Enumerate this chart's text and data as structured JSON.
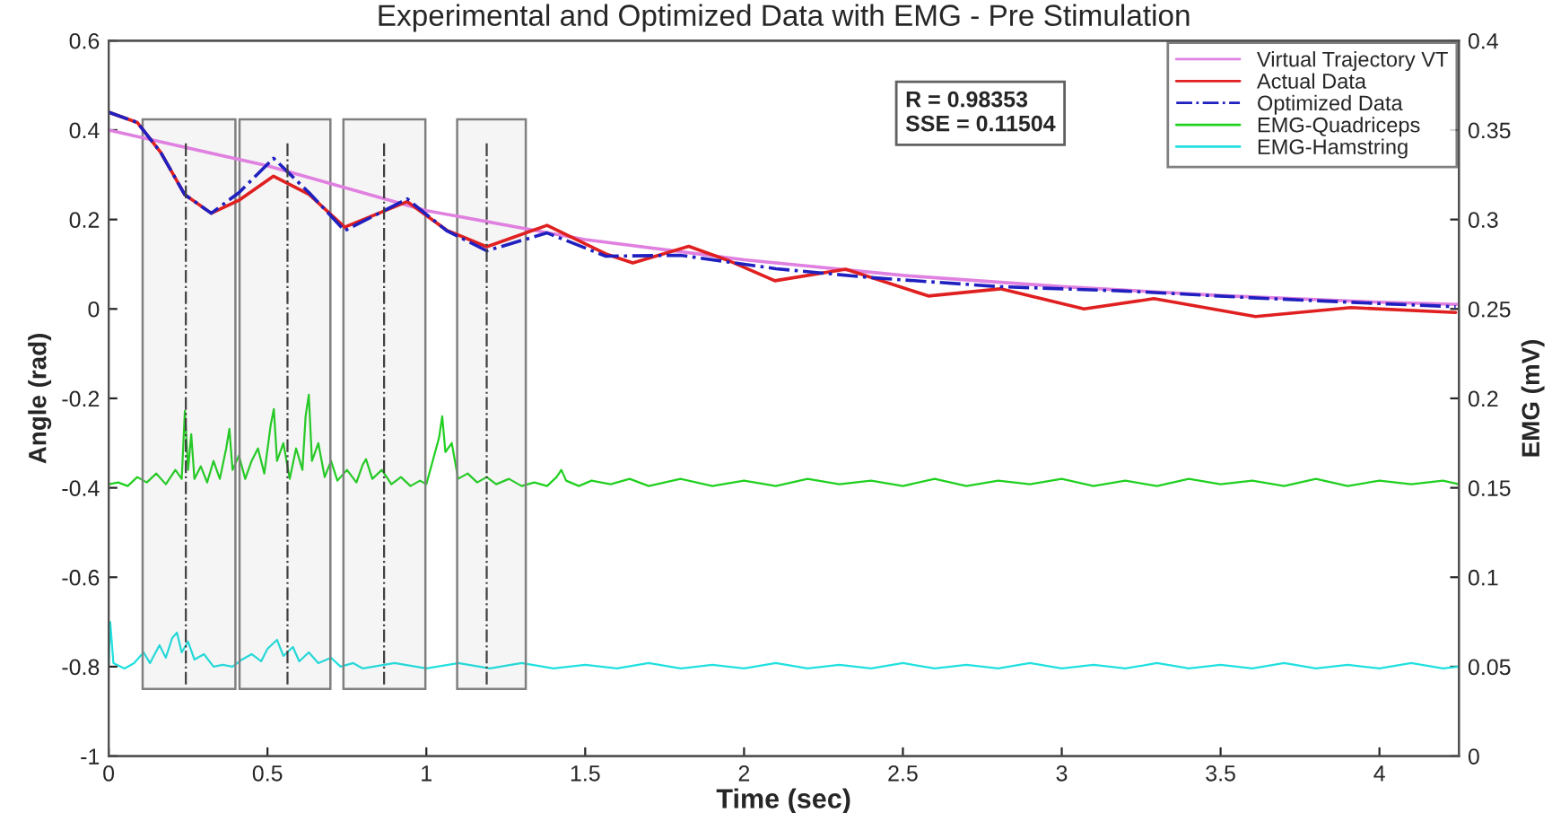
{
  "chart_data": {
    "type": "line",
    "title": "Experimental and Optimized Data with EMG - Pre Stimulation",
    "xlabel": "Time (sec)",
    "ylabel": "Angle (rad)",
    "y2label": "EMG (mV)",
    "xlim": [
      0,
      4.25
    ],
    "xticks": [
      0,
      0.5,
      1,
      1.5,
      2,
      2.5,
      3,
      3.5,
      4
    ],
    "ylim": [
      -1,
      0.6
    ],
    "yticks": [
      -1,
      -0.8,
      -0.6,
      -0.4,
      -0.2,
      0,
      0.2,
      0.4,
      0.6
    ],
    "y2lim": [
      0,
      0.4
    ],
    "y2ticks": [
      0,
      0.05,
      0.1,
      0.15,
      0.2,
      0.25,
      0.3,
      0.35,
      0.4
    ],
    "legend": "top right",
    "grid": false,
    "annotations": [
      "R = 0.98353\nSSE = 0.11504"
    ],
    "bands": [
      {
        "axis": "x",
        "from": 0.107,
        "to": 0.399,
        "color": "#808080"
      },
      {
        "axis": "x",
        "from": 0.412,
        "to": 0.698,
        "color": "#808080"
      },
      {
        "axis": "x",
        "from": 0.739,
        "to": 0.997,
        "color": "#808080"
      },
      {
        "axis": "x",
        "from": 1.097,
        "to": 1.313,
        "color": "#808080"
      }
    ],
    "ref_lines": [
      {
        "axis": "x",
        "value": 0.243,
        "color": "#404040",
        "line_style": "dashed"
      },
      {
        "axis": "x",
        "value": 0.563,
        "color": "#404040",
        "line_style": "dashed"
      },
      {
        "axis": "x",
        "value": 0.867,
        "color": "#404040",
        "line_style": "dashed"
      },
      {
        "axis": "x",
        "value": 1.19,
        "color": "#404040",
        "line_style": "dashed"
      }
    ],
    "series": [
      {
        "name": "Virtual Trajectory VT",
        "color": "#e080e0",
        "line_style": "solid",
        "x": [
          0,
          0.5,
          1.0,
          1.5,
          2.0,
          2.5,
          3.0,
          3.5,
          4.0,
          4.25
        ],
        "values": [
          0.4,
          0.32,
          0.22,
          0.155,
          0.11,
          0.075,
          0.05,
          0.03,
          0.015,
          0.01
        ]
      },
      {
        "name": "Actual Data",
        "color": "#e02020",
        "line_style": "solid",
        "x": [
          0,
          0.09,
          0.164,
          0.239,
          0.323,
          0.41,
          0.519,
          0.631,
          0.743,
          0.94,
          1.064,
          1.19,
          1.38,
          1.565,
          1.65,
          1.826,
          1.948,
          2.097,
          2.32,
          2.58,
          2.807,
          3.07,
          3.29,
          3.61,
          3.91,
          4.24
        ],
        "values": [
          0.44,
          0.417,
          0.35,
          0.256,
          0.214,
          0.243,
          0.297,
          0.256,
          0.183,
          0.24,
          0.176,
          0.139,
          0.187,
          0.123,
          0.103,
          0.14,
          0.109,
          0.063,
          0.089,
          0.029,
          0.045,
          0.0,
          0.023,
          -0.017,
          0.003,
          -0.008
        ]
      },
      {
        "name": "Optimized Data",
        "color": "#2020c0",
        "line_style": "dashed",
        "x": [
          0,
          0.09,
          0.164,
          0.239,
          0.323,
          0.41,
          0.519,
          0.631,
          0.743,
          0.94,
          1.064,
          1.19,
          1.38,
          1.565,
          1.8,
          2.1,
          2.4,
          2.8,
          3.2,
          3.6,
          4.0,
          4.24
        ],
        "values": [
          0.44,
          0.417,
          0.35,
          0.256,
          0.214,
          0.26,
          0.337,
          0.26,
          0.175,
          0.246,
          0.175,
          0.13,
          0.17,
          0.118,
          0.12,
          0.09,
          0.07,
          0.05,
          0.04,
          0.025,
          0.012,
          0.005
        ]
      },
      {
        "name": "EMG-Quadriceps",
        "color": "#20d020",
        "line_style": "solid",
        "axis": "y2",
        "x": [
          0,
          0.03,
          0.06,
          0.09,
          0.12,
          0.15,
          0.18,
          0.21,
          0.23,
          0.24,
          0.25,
          0.26,
          0.27,
          0.29,
          0.31,
          0.33,
          0.35,
          0.37,
          0.38,
          0.39,
          0.41,
          0.43,
          0.45,
          0.47,
          0.49,
          0.51,
          0.52,
          0.53,
          0.55,
          0.57,
          0.59,
          0.61,
          0.62,
          0.63,
          0.64,
          0.66,
          0.68,
          0.7,
          0.72,
          0.75,
          0.78,
          0.8,
          0.81,
          0.83,
          0.86,
          0.89,
          0.92,
          0.95,
          0.98,
          1.0,
          1.02,
          1.04,
          1.05,
          1.06,
          1.08,
          1.1,
          1.13,
          1.16,
          1.19,
          1.22,
          1.26,
          1.3,
          1.34,
          1.38,
          1.41,
          1.425,
          1.44,
          1.48,
          1.52,
          1.58,
          1.64,
          1.7,
          1.8,
          1.9,
          2.0,
          2.1,
          2.2,
          2.3,
          2.4,
          2.5,
          2.6,
          2.7,
          2.8,
          2.9,
          3.0,
          3.1,
          3.2,
          3.3,
          3.4,
          3.5,
          3.6,
          3.7,
          3.8,
          3.9,
          4.0,
          4.1,
          4.2,
          4.25
        ],
        "values": [
          0.152,
          0.153,
          0.151,
          0.156,
          0.153,
          0.158,
          0.152,
          0.16,
          0.155,
          0.193,
          0.16,
          0.18,
          0.155,
          0.162,
          0.153,
          0.165,
          0.155,
          0.172,
          0.183,
          0.16,
          0.168,
          0.155,
          0.165,
          0.172,
          0.158,
          0.185,
          0.194,
          0.165,
          0.175,
          0.155,
          0.172,
          0.16,
          0.19,
          0.202,
          0.165,
          0.175,
          0.156,
          0.165,
          0.154,
          0.16,
          0.153,
          0.163,
          0.166,
          0.155,
          0.16,
          0.152,
          0.156,
          0.151,
          0.154,
          0.152,
          0.165,
          0.178,
          0.19,
          0.17,
          0.175,
          0.155,
          0.158,
          0.153,
          0.156,
          0.152,
          0.155,
          0.151,
          0.153,
          0.151,
          0.156,
          0.16,
          0.154,
          0.151,
          0.154,
          0.152,
          0.155,
          0.151,
          0.155,
          0.151,
          0.154,
          0.151,
          0.155,
          0.152,
          0.154,
          0.151,
          0.155,
          0.151,
          0.154,
          0.152,
          0.155,
          0.151,
          0.154,
          0.151,
          0.155,
          0.152,
          0.154,
          0.151,
          0.155,
          0.151,
          0.154,
          0.152,
          0.154,
          0.152
        ]
      },
      {
        "name": "EMG-Hamstring",
        "color": "#20e0e0",
        "line_style": "solid",
        "axis": "y2",
        "x": [
          0,
          0.005,
          0.015,
          0.05,
          0.08,
          0.11,
          0.13,
          0.16,
          0.18,
          0.2,
          0.215,
          0.23,
          0.25,
          0.27,
          0.3,
          0.33,
          0.36,
          0.39,
          0.42,
          0.45,
          0.48,
          0.5,
          0.53,
          0.55,
          0.58,
          0.6,
          0.63,
          0.66,
          0.7,
          0.73,
          0.77,
          0.8,
          0.9,
          1.0,
          1.1,
          1.2,
          1.3,
          1.4,
          1.5,
          1.6,
          1.7,
          1.8,
          1.9,
          2.0,
          2.1,
          2.2,
          2.3,
          2.4,
          2.5,
          2.6,
          2.7,
          2.8,
          2.9,
          3.0,
          3.1,
          3.2,
          3.3,
          3.4,
          3.5,
          3.6,
          3.7,
          3.8,
          3.9,
          4.0,
          4.1,
          4.2,
          4.25
        ],
        "values": [
          0.05,
          0.075,
          0.052,
          0.049,
          0.052,
          0.058,
          0.052,
          0.062,
          0.055,
          0.066,
          0.069,
          0.058,
          0.064,
          0.054,
          0.057,
          0.05,
          0.051,
          0.05,
          0.054,
          0.057,
          0.053,
          0.06,
          0.065,
          0.056,
          0.061,
          0.053,
          0.058,
          0.052,
          0.055,
          0.05,
          0.052,
          0.049,
          0.052,
          0.049,
          0.052,
          0.049,
          0.052,
          0.049,
          0.051,
          0.049,
          0.052,
          0.049,
          0.051,
          0.049,
          0.052,
          0.049,
          0.051,
          0.049,
          0.052,
          0.049,
          0.051,
          0.049,
          0.052,
          0.049,
          0.051,
          0.049,
          0.052,
          0.049,
          0.051,
          0.049,
          0.052,
          0.049,
          0.051,
          0.049,
          0.052,
          0.049,
          0.05
        ]
      }
    ]
  }
}
